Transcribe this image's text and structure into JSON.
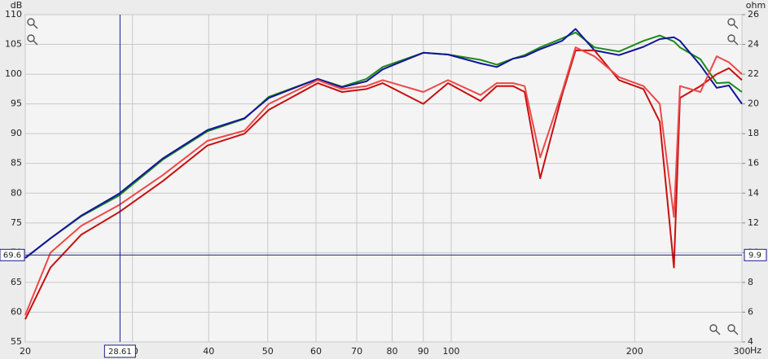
{
  "chart_data": {
    "type": "line",
    "y_unit": "dB",
    "y2_unit": "ohm",
    "x_unit": "Hz",
    "x": [
      20,
      22,
      24.7,
      28.5,
      33.6,
      39.8,
      45.8,
      50.2,
      60.4,
      66.2,
      72.6,
      77.2,
      90,
      98.8,
      111.7,
      118.8,
      126.3,
      132,
      140,
      152,
      160,
      171.8,
      188.5,
      206.8,
      219.9,
      232,
      237.4,
      256.4,
      272.7,
      285.6,
      300
    ],
    "series": [
      {
        "color": "#1a8a1a",
        "values": [
          69.1,
          72.4,
          76.1,
          79.6,
          85.6,
          90.4,
          92.5,
          96.2,
          99.2,
          97.9,
          99.2,
          101.2,
          103.6,
          103.3,
          102.4,
          101.6,
          102.6,
          103.2,
          104.5,
          106,
          107,
          104.5,
          103.8,
          105.6,
          106.5,
          105.5,
          104.5,
          102.5,
          98.5,
          98.6,
          97
        ]
      },
      {
        "color": "#14149a",
        "values": [
          69.1,
          72.4,
          76.2,
          79.9,
          85.8,
          90.6,
          92.6,
          96,
          99.2,
          97.8,
          98.8,
          100.8,
          103.6,
          103.3,
          101.8,
          101.2,
          102.6,
          103,
          104.2,
          105.6,
          107.6,
          104,
          103.2,
          104.6,
          105.9,
          106.2,
          105.6,
          101.5,
          97.7,
          98.1,
          95
        ]
      },
      {
        "color": "#c81010",
        "values": [
          58.8,
          67.5,
          73,
          76.8,
          82,
          88,
          90,
          94,
          98.5,
          97,
          97.5,
          98.5,
          95,
          98.5,
          95.5,
          98,
          98,
          97,
          82.5,
          96.5,
          104,
          104,
          99,
          97.5,
          92,
          67.5,
          96,
          98,
          100,
          101,
          99
        ]
      },
      {
        "color": "#ee4848",
        "values": [
          59.5,
          70,
          74.5,
          78,
          83,
          88.8,
          90.5,
          95,
          99,
          97.5,
          98,
          99,
          97,
          99,
          96.5,
          98.5,
          98.5,
          98,
          86,
          97,
          104.5,
          103,
          99.5,
          98,
          95,
          76,
          98,
          97,
          103,
          102,
          100
        ]
      }
    ],
    "xscale": "log",
    "xlim": [
      20,
      300
    ],
    "xticks": [
      20,
      30,
      40,
      50,
      60,
      70,
      80,
      90,
      100,
      200,
      300
    ],
    "ylim": [
      55,
      110
    ],
    "yticks": [
      55,
      60,
      65,
      70,
      75,
      80,
      85,
      90,
      95,
      100,
      105,
      110
    ],
    "y2lim": [
      4,
      26
    ],
    "y2ticks": [
      4,
      6,
      8,
      10,
      12,
      14,
      16,
      18,
      20,
      22,
      24,
      26
    ],
    "grid": true,
    "cursor": {
      "x": 28.61,
      "y": 69.6,
      "y2": 9.9
    }
  }
}
